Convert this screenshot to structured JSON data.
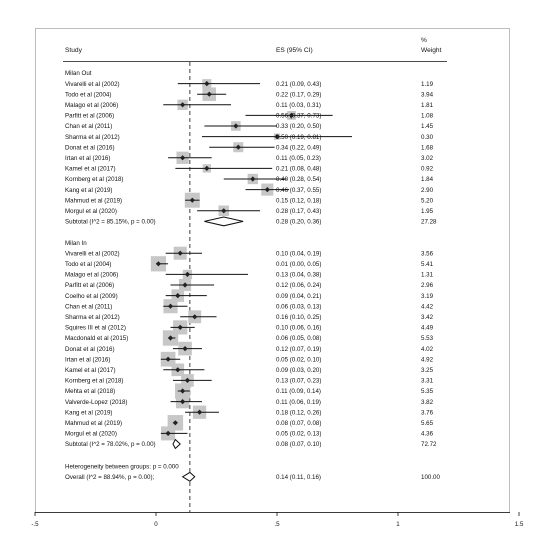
{
  "chart_data": {
    "type": "forest",
    "headers": {
      "study": "Study",
      "es": "ES (95% CI)",
      "weight_pct": "%",
      "weight": "Weight"
    },
    "xlim": [
      -0.5,
      1.5
    ],
    "x_ticks": [
      -0.5,
      0,
      0.5,
      1,
      1.5
    ],
    "x_tick_labels": [
      "-.5",
      "0",
      ".5",
      "1",
      "1.5"
    ],
    "overall_line": 0.14,
    "groups": [
      {
        "label": "Milan Out",
        "studies": [
          {
            "name": "Vivarelli et al (2002)",
            "es": 0.21,
            "lo": 0.09,
            "hi": 0.43,
            "ci": "0.21 (0.09, 0.43)",
            "weight": "1.19"
          },
          {
            "name": "Todo et al (2004)",
            "es": 0.22,
            "lo": 0.17,
            "hi": 0.29,
            "ci": "0.22 (0.17, 0.29)",
            "weight": "3.94"
          },
          {
            "name": "Malago et al (2006)",
            "es": 0.11,
            "lo": 0.03,
            "hi": 0.31,
            "ci": "0.11 (0.03, 0.31)",
            "weight": "1.81"
          },
          {
            "name": "Parfitt et al (2006)",
            "es": 0.56,
            "lo": 0.37,
            "hi": 0.73,
            "ci": "0.56 (0.37, 0.73)",
            "weight": "1.08"
          },
          {
            "name": "Chan et al (2011)",
            "es": 0.33,
            "lo": 0.2,
            "hi": 0.5,
            "ci": "0.33 (0.20, 0.50)",
            "weight": "1.45"
          },
          {
            "name": "Sharma et al (2012)",
            "es": 0.5,
            "lo": 0.19,
            "hi": 0.81,
            "ci": "0.50 (0.19, 0.81)",
            "weight": "0.30"
          },
          {
            "name": "Donat et al  (2016)",
            "es": 0.34,
            "lo": 0.22,
            "hi": 0.49,
            "ci": "0.34 (0.22, 0.49)",
            "weight": "1.68"
          },
          {
            "name": "Irtan et al (2016)",
            "es": 0.11,
            "lo": 0.05,
            "hi": 0.23,
            "ci": "0.11 (0.05, 0.23)",
            "weight": "3.02"
          },
          {
            "name": "Kamel et al (2017)",
            "es": 0.21,
            "lo": 0.08,
            "hi": 0.48,
            "ci": "0.21 (0.08, 0.48)",
            "weight": "0.92"
          },
          {
            "name": "Kornberg et al (2018)",
            "es": 0.4,
            "lo": 0.28,
            "hi": 0.54,
            "ci": "0.40 (0.28, 0.54)",
            "weight": "1.84"
          },
          {
            "name": "Kang et al (2019)",
            "es": 0.46,
            "lo": 0.37,
            "hi": 0.55,
            "ci": "0.46 (0.37, 0.55)",
            "weight": "2.90"
          },
          {
            "name": "Mahmud et al (2019)",
            "es": 0.15,
            "lo": 0.12,
            "hi": 0.18,
            "ci": "0.15 (0.12, 0.18)",
            "weight": "5.20"
          },
          {
            "name": "Morgul et al (2020)",
            "es": 0.28,
            "lo": 0.17,
            "hi": 0.43,
            "ci": "0.28 (0.17, 0.43)",
            "weight": "1.95"
          }
        ],
        "subtotal": {
          "label": "Subtotal  (I^2 = 85.15%, p = 0.00)",
          "es": 0.28,
          "lo": 0.2,
          "hi": 0.36,
          "ci": "0.28 (0.20, 0.36)",
          "weight": "27.28"
        }
      },
      {
        "label": "Milan In",
        "studies": [
          {
            "name": "Vivarelli et al (2002)",
            "es": 0.1,
            "lo": 0.04,
            "hi": 0.19,
            "ci": "0.10 (0.04, 0.19)",
            "weight": "3.56"
          },
          {
            "name": "Todo et al (2004)",
            "es": 0.01,
            "lo": 0.0,
            "hi": 0.05,
            "ci": "0.01 (0.00, 0.05)",
            "weight": "5.41"
          },
          {
            "name": "Malago et al (2006)",
            "es": 0.13,
            "lo": 0.04,
            "hi": 0.38,
            "ci": "0.13 (0.04, 0.38)",
            "weight": "1.31"
          },
          {
            "name": "Parfitt et al (2006)",
            "es": 0.12,
            "lo": 0.06,
            "hi": 0.24,
            "ci": "0.12 (0.06, 0.24)",
            "weight": "2.96"
          },
          {
            "name": "Coelho et al (2009)",
            "es": 0.09,
            "lo": 0.04,
            "hi": 0.21,
            "ci": "0.09 (0.04, 0.21)",
            "weight": "3.19"
          },
          {
            "name": "Chan et al (2011)",
            "es": 0.06,
            "lo": 0.03,
            "hi": 0.13,
            "ci": "0.06 (0.03, 0.13)",
            "weight": "4.42"
          },
          {
            "name": "Sharma et al (2012)",
            "es": 0.16,
            "lo": 0.1,
            "hi": 0.25,
            "ci": "0.16 (0.10, 0.25)",
            "weight": "3.42"
          },
          {
            "name": "Squires III et al (2012)",
            "es": 0.1,
            "lo": 0.06,
            "hi": 0.16,
            "ci": "0.10 (0.06, 0.16)",
            "weight": "4.49"
          },
          {
            "name": "Macdonald et al (2015)",
            "es": 0.06,
            "lo": 0.05,
            "hi": 0.08,
            "ci": "0.06 (0.05, 0.08)",
            "weight": "5.53"
          },
          {
            "name": "Donat et al  (2016)",
            "es": 0.12,
            "lo": 0.07,
            "hi": 0.19,
            "ci": "0.12 (0.07, 0.19)",
            "weight": "4.02"
          },
          {
            "name": "Irtan et al (2016)",
            "es": 0.05,
            "lo": 0.02,
            "hi": 0.1,
            "ci": "0.05 (0.02, 0.10)",
            "weight": "4.92"
          },
          {
            "name": "Kamel et al (2017)",
            "es": 0.09,
            "lo": 0.03,
            "hi": 0.2,
            "ci": "0.09 (0.03, 0.20)",
            "weight": "3.25"
          },
          {
            "name": "Kornberg et al (2018)",
            "es": 0.13,
            "lo": 0.07,
            "hi": 0.23,
            "ci": "0.13 (0.07, 0.23)",
            "weight": "3.31"
          },
          {
            "name": "Mehta et al (2018)",
            "es": 0.11,
            "lo": 0.09,
            "hi": 0.14,
            "ci": "0.11 (0.09, 0.14)",
            "weight": "5.35"
          },
          {
            "name": "Valverde-Lopez (2018)",
            "es": 0.11,
            "lo": 0.06,
            "hi": 0.19,
            "ci": "0.11 (0.06, 0.19)",
            "weight": "3.82"
          },
          {
            "name": "Kang et al  (2019)",
            "es": 0.18,
            "lo": 0.12,
            "hi": 0.26,
            "ci": "0.18 (0.12, 0.26)",
            "weight": "3.76"
          },
          {
            "name": "Mahmud et al (2019)",
            "es": 0.08,
            "lo": 0.07,
            "hi": 0.08,
            "ci": "0.08 (0.07, 0.08)",
            "weight": "5.65"
          },
          {
            "name": "Morgul et al (2020)",
            "es": 0.05,
            "lo": 0.02,
            "hi": 0.13,
            "ci": "0.05 (0.02, 0.13)",
            "weight": "4.36"
          }
        ],
        "subtotal": {
          "label": "Subtotal  (I^2 = 78.02%, p = 0.00)",
          "es": 0.08,
          "lo": 0.07,
          "hi": 0.1,
          "ci": "0.08 (0.07, 0.10)",
          "weight": "72.72"
        }
      }
    ],
    "heterogeneity": "Heterogeneity between groups: p = 0.000",
    "overall": {
      "label": "Overall  (I^2 = 88.94%, p = 0.00);",
      "es": 0.14,
      "lo": 0.11,
      "hi": 0.16,
      "ci": "0.14 (0.11, 0.16)",
      "weight": "100.00"
    }
  }
}
